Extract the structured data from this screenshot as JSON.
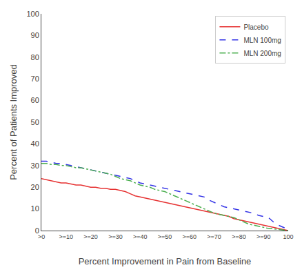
{
  "chart_data": {
    "type": "line",
    "xlabel": "Percent Improvement in Pain from Baseline",
    "ylabel": "Percent of Patients Improved",
    "xlim": [
      0,
      100
    ],
    "ylim": [
      0,
      100
    ],
    "xticks": [
      {
        "value": 0,
        "label": ">0"
      },
      {
        "value": 10,
        "label": ">=10"
      },
      {
        "value": 20,
        "label": ">=20"
      },
      {
        "value": 30,
        "label": ">=30"
      },
      {
        "value": 40,
        "label": ">=40"
      },
      {
        "value": 50,
        "label": ">=50"
      },
      {
        "value": 60,
        "label": ">=60"
      },
      {
        "value": 70,
        "label": ">=70"
      },
      {
        "value": 80,
        "label": ">=80"
      },
      {
        "value": 90,
        "label": ">=90"
      },
      100
    ],
    "yticks": [
      0,
      10,
      20,
      30,
      40,
      50,
      60,
      70,
      80,
      90,
      100
    ],
    "grid": false,
    "legend": "upper right",
    "x": [
      0,
      2,
      4,
      6,
      8,
      10,
      12,
      14,
      16,
      18,
      20,
      22,
      24,
      26,
      28,
      30,
      32,
      34,
      36,
      38,
      40,
      42,
      44,
      46,
      48,
      50,
      52,
      54,
      56,
      58,
      60,
      62,
      64,
      66,
      68,
      70,
      72,
      74,
      76,
      78,
      80,
      82,
      84,
      86,
      88,
      90,
      92,
      94,
      96,
      98,
      100
    ],
    "series": [
      {
        "name": "Placebo",
        "color": "#e63232",
        "line_style": "solid",
        "values": [
          24,
          23.5,
          23,
          22.5,
          22,
          22,
          21.5,
          21,
          21,
          20.5,
          20,
          20,
          19.5,
          19.5,
          19,
          19,
          18.5,
          18,
          17,
          16,
          15.5,
          15,
          14.5,
          14,
          13.5,
          13,
          12.5,
          12,
          11.5,
          11,
          10.5,
          10,
          9.5,
          9,
          8.5,
          8,
          7.5,
          7,
          6.5,
          5.5,
          5,
          4.5,
          4,
          3.5,
          3,
          2.5,
          2,
          1.5,
          1,
          0.5,
          0
        ]
      },
      {
        "name": "MLN 100mg",
        "color": "#3232e6",
        "line_style": "dashed",
        "values": [
          32,
          32,
          31.5,
          31,
          31,
          30.5,
          30,
          29.5,
          29,
          28.5,
          28,
          27.5,
          27,
          26.5,
          26,
          25.5,
          25,
          24.5,
          24,
          23,
          22,
          21.5,
          21,
          20.5,
          20,
          19.5,
          19,
          18.5,
          18,
          17.5,
          17,
          16.5,
          16,
          15.5,
          14,
          13,
          12,
          11,
          10.5,
          10,
          9.5,
          9,
          8.5,
          8,
          7,
          6.5,
          6,
          4,
          2.5,
          1.5,
          0.5
        ]
      },
      {
        "name": "MLN 200mg",
        "color": "#4caf50",
        "line_style": "dashdot",
        "values": [
          31,
          31,
          30.5,
          30.5,
          30,
          30,
          29.5,
          29,
          29,
          28.5,
          28,
          27.5,
          27,
          26.5,
          26,
          25,
          24,
          23.5,
          23,
          22,
          21,
          20.5,
          20,
          19,
          18.5,
          18,
          17,
          16,
          15,
          14,
          13,
          12,
          11,
          10,
          9,
          8,
          7.5,
          7,
          6.5,
          6,
          5,
          4,
          3,
          2.5,
          2,
          1.5,
          1,
          0.8,
          0.5,
          0.3,
          0
        ]
      }
    ]
  }
}
